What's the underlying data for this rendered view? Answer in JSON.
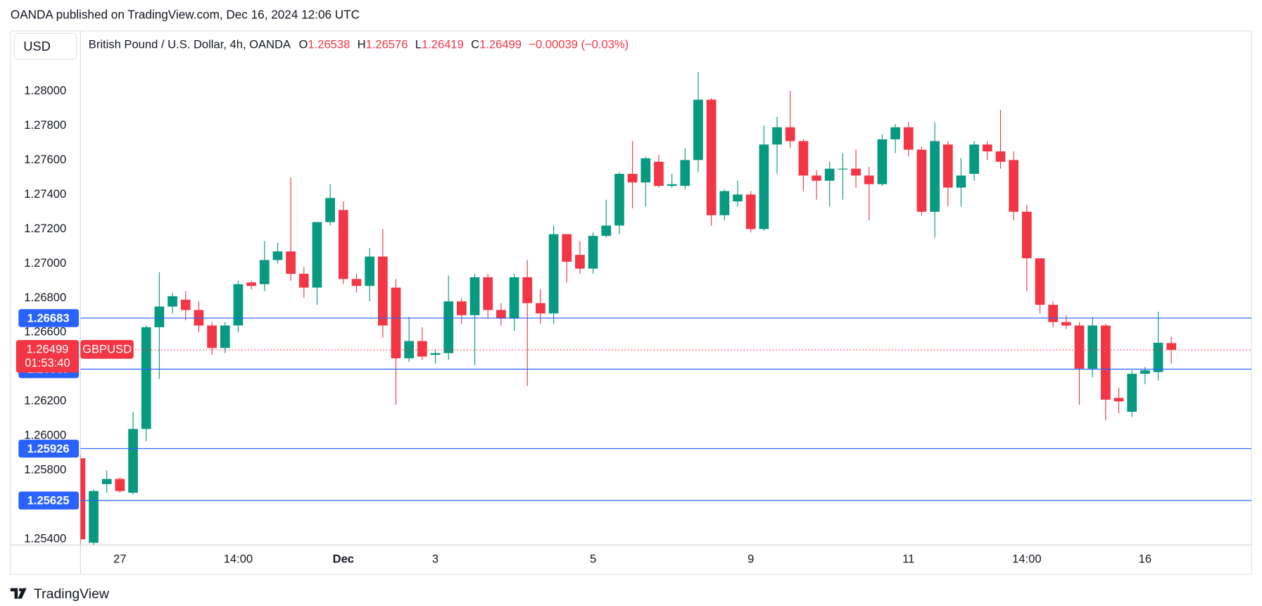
{
  "header": {
    "published": "OANDA published on TradingView.com, Dec 16, 2024 12:06 UTC",
    "currency": "USD",
    "footer": "TradingView"
  },
  "chart_data": {
    "type": "candlestick",
    "title": "British Pound / U.S. Dollar, 4h, OANDA",
    "ohlc_labels": [
      "O",
      "H",
      "L",
      "C"
    ],
    "change": "−0.00039 (−0.03%)",
    "symbol": "GBPUSD",
    "countdown": "01:53:40",
    "up_color": "#089981",
    "down_color": "#f23645",
    "line_color": "#2962ff",
    "grid": false,
    "ylim": [
      1.25367,
      1.28349
    ],
    "yticks": [
      {
        "value": 1.254,
        "label": "1.25400"
      },
      {
        "value": 1.258,
        "label": "1.25800"
      },
      {
        "value": 1.26,
        "label": "1.26000"
      },
      {
        "value": 1.262,
        "label": "1.26200"
      },
      {
        "value": 1.266,
        "label": "1.26600"
      },
      {
        "value": 1.268,
        "label": "1.26800"
      },
      {
        "value": 1.27,
        "label": "1.27000"
      },
      {
        "value": 1.272,
        "label": "1.27200"
      },
      {
        "value": 1.274,
        "label": "1.27400"
      },
      {
        "value": 1.276,
        "label": "1.27600"
      },
      {
        "value": 1.278,
        "label": "1.27800"
      },
      {
        "value": 1.28,
        "label": "1.28000"
      }
    ],
    "price_lines": [
      {
        "value": 1.26683
      },
      {
        "value": 1.26387
      },
      {
        "value": 1.25926
      },
      {
        "value": 1.25625
      }
    ],
    "categories": [
      null,
      null,
      null,
      "27",
      null,
      null,
      null,
      null,
      null,
      null,
      null,
      null,
      "14:00",
      null,
      null,
      null,
      null,
      null,
      null,
      null,
      "Dec",
      null,
      null,
      null,
      null,
      null,
      null,
      "3",
      null,
      null,
      null,
      null,
      null,
      null,
      null,
      null,
      null,
      null,
      null,
      "5",
      null,
      null,
      null,
      null,
      null,
      null,
      null,
      null,
      null,
      null,
      null,
      "9",
      null,
      null,
      null,
      null,
      null,
      null,
      null,
      null,
      null,
      null,
      null,
      "11",
      null,
      null,
      null,
      null,
      null,
      null,
      null,
      null,
      "14:00",
      null,
      null,
      null,
      null,
      null,
      null,
      null,
      null,
      "16",
      null,
      null
    ],
    "open": [
      1.2587,
      1.2538,
      1.2572,
      1.2575,
      1.2567,
      1.2604,
      1.2663,
      1.2675,
      1.2679,
      1.2673,
      1.2664,
      1.2651,
      1.2664,
      1.2689,
      1.2688,
      1.2702,
      1.2707,
      1.2694,
      1.2686,
      1.2724,
      1.2731,
      1.2691,
      1.2687,
      1.2704,
      1.2686,
      1.2645,
      1.2655,
      1.2647,
      1.2648,
      1.2678,
      1.267,
      1.2692,
      1.2673,
      1.2668,
      1.2692,
      1.2677,
      1.2671,
      1.2717,
      1.2705,
      1.2697,
      1.2716,
      1.2722,
      1.2752,
      1.2747,
      1.2759,
      1.2745,
      1.2745,
      1.276,
      1.2795,
      1.2728,
      1.2736,
      1.274,
      1.272,
      1.2769,
      1.2779,
      1.2771,
      1.2751,
      1.2748,
      1.2755,
      1.2755,
      1.2751,
      1.2746,
      1.2772,
      1.2779,
      1.2766,
      1.273,
      1.2769,
      1.2744,
      1.2752,
      1.2769,
      1.2765,
      1.276,
      1.273,
      1.2703,
      1.2676,
      1.2666,
      1.2664,
      1.2639,
      1.2664,
      1.2622,
      1.2614,
      1.2636,
      1.2637,
      1.26538
    ],
    "high": [
      1.2589,
      1.2569,
      1.258,
      1.2576,
      1.2614,
      1.2664,
      1.2695,
      1.2683,
      1.2684,
      1.2678,
      1.2666,
      1.2666,
      1.269,
      1.269,
      1.2713,
      1.2712,
      1.275,
      1.2698,
      1.2724,
      1.2746,
      1.2736,
      1.2694,
      1.2709,
      1.272,
      1.2691,
      1.2669,
      1.2663,
      1.265,
      1.2693,
      1.268,
      1.2694,
      1.2694,
      1.2677,
      1.2694,
      1.2702,
      1.2685,
      1.2722,
      1.2717,
      1.2713,
      1.2718,
      1.2737,
      1.2753,
      1.2771,
      1.2762,
      1.2763,
      1.2752,
      1.2767,
      1.2811,
      1.2796,
      1.2743,
      1.2748,
      1.2742,
      1.278,
      1.2785,
      1.28,
      1.2772,
      1.2754,
      1.2759,
      1.2764,
      1.2766,
      1.2756,
      1.2775,
      1.2781,
      1.2782,
      1.2768,
      1.2782,
      1.2771,
      1.2761,
      1.2771,
      1.2771,
      1.2789,
      1.2765,
      1.2734,
      1.2703,
      1.2678,
      1.267,
      1.2666,
      1.2669,
      1.2665,
      1.2628,
      1.2638,
      1.264,
      1.2672,
      1.26576
    ],
    "low": [
      1.2537,
      1.2536,
      1.2567,
      1.2567,
      1.2566,
      1.2597,
      1.2633,
      1.2671,
      1.2667,
      1.266,
      1.2647,
      1.2648,
      1.266,
      1.2685,
      1.2684,
      1.27,
      1.269,
      1.268,
      1.2676,
      1.2722,
      1.2688,
      1.2683,
      1.2678,
      1.2657,
      1.2618,
      1.2643,
      1.2644,
      1.2642,
      1.2644,
      1.2665,
      1.2641,
      1.2668,
      1.2664,
      1.2661,
      1.2629,
      1.2665,
      1.2665,
      1.2689,
      1.2694,
      1.2694,
      1.2715,
      1.2717,
      1.2732,
      1.2733,
      1.2744,
      1.2744,
      1.2743,
      1.2753,
      1.2722,
      1.2725,
      1.2733,
      1.2718,
      1.2719,
      1.2752,
      1.2767,
      1.2742,
      1.2737,
      1.2733,
      1.2737,
      1.2744,
      1.2725,
      1.2745,
      1.2764,
      1.2762,
      1.2728,
      1.2715,
      1.2733,
      1.2733,
      1.2748,
      1.276,
      1.2755,
      1.2725,
      1.2684,
      1.2671,
      1.2663,
      1.2662,
      1.2618,
      1.2634,
      1.2609,
      1.2613,
      1.2611,
      1.263,
      1.2632,
      1.26419
    ],
    "close": [
      1.254,
      1.2568,
      1.2575,
      1.2568,
      1.2604,
      1.2663,
      1.2675,
      1.2681,
      1.2673,
      1.2664,
      1.2651,
      1.2664,
      1.2688,
      1.2687,
      1.2702,
      1.2707,
      1.2694,
      1.2686,
      1.2724,
      1.2738,
      1.2691,
      1.2687,
      1.2704,
      1.2664,
      1.2645,
      1.2655,
      1.2646,
      1.2648,
      1.2678,
      1.267,
      1.2692,
      1.2673,
      1.2668,
      1.2692,
      1.2677,
      1.2671,
      1.2717,
      1.2701,
      1.2697,
      1.2716,
      1.2722,
      1.2752,
      1.2747,
      1.2761,
      1.2745,
      1.2746,
      1.276,
      1.2795,
      1.2728,
      1.2742,
      1.274,
      1.272,
      1.2769,
      1.2779,
      1.2771,
      1.2751,
      1.2748,
      1.2755,
      1.2755,
      1.2751,
      1.2746,
      1.2772,
      1.2779,
      1.2766,
      1.273,
      1.2771,
      1.2744,
      1.2751,
      1.2769,
      1.2765,
      1.2759,
      1.273,
      1.2703,
      1.2676,
      1.2666,
      1.2664,
      1.2639,
      1.2664,
      1.2621,
      1.262,
      1.2636,
      1.2638,
      1.2654,
      1.26499
    ]
  }
}
